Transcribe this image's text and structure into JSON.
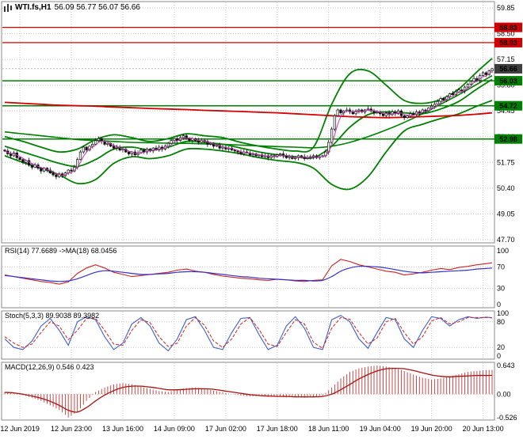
{
  "window": {
    "title_symbol": "WTI.fs,H1",
    "title_ohlc": "56.09 56.77 56.07 56.66"
  },
  "colors": {
    "resistance": "#d40000",
    "support": "#008000",
    "current_tag": "#3d3d3d",
    "candle_outline": "#111111",
    "rsi_main": "#cc2222",
    "rsi_ma": "#3333cc",
    "stoch_main": "#3a5fc8",
    "stoch_signal": "#cc2222",
    "macd_color": "#cc3333",
    "ma_red": "#d40000",
    "ma_green": "#008000",
    "ma_fast": "#c03ab0",
    "grid": "#c6c6c6",
    "frame": "#8a8a8a"
  },
  "chart_data": {
    "type": "candlestick",
    "symbol": "WTI.fs",
    "timeframe": "H1",
    "current_bar": {
      "open": 56.09,
      "high": 56.77,
      "low": 56.07,
      "close": 56.66
    },
    "price_axis": {
      "ticks": [
        59.85,
        58.5,
        57.15,
        55.8,
        54.45,
        53.1,
        51.75,
        50.4,
        49.05,
        47.7
      ]
    },
    "x_axis": {
      "labels": [
        "12 Jun 2019",
        "12 Jun 23:00",
        "13 Jun 16:00",
        "14 Jun 09:00",
        "17 Jun 02:00",
        "17 Jun 18:00",
        "18 Jun 11:00",
        "19 Jun 04:00",
        "19 Jun 20:00",
        "20 Jun 13:00"
      ],
      "bar_index": [
        5,
        22,
        39,
        56,
        73,
        90,
        107,
        124,
        141,
        158
      ]
    },
    "levels": {
      "resistance": [
        58.83,
        58.03
      ],
      "support": [
        56.03,
        54.72,
        52.98
      ],
      "current_price": 56.66
    },
    "candles": {
      "first_open": 52.4,
      "closes": [
        52.35,
        52.2,
        52.1,
        52.25,
        52.0,
        51.9,
        51.75,
        51.85,
        51.6,
        51.5,
        51.62,
        51.45,
        51.3,
        51.45,
        51.35,
        51.2,
        51.1,
        51.0,
        51.15,
        51.05,
        51.2,
        51.35,
        51.3,
        51.5,
        51.9,
        52.3,
        52.55,
        52.4,
        52.6,
        52.7,
        52.9,
        53.0,
        52.85,
        52.7,
        52.75,
        52.6,
        52.5,
        52.55,
        52.4,
        52.45,
        52.3,
        52.2,
        52.3,
        52.15,
        52.25,
        52.4,
        52.3,
        52.45,
        52.35,
        52.5,
        52.4,
        52.55,
        52.45,
        52.6,
        52.75,
        52.9,
        53.0,
        52.9,
        53.05,
        53.15,
        53.0,
        52.9,
        53.0,
        52.9,
        52.8,
        52.9,
        52.85,
        52.7,
        52.75,
        52.6,
        52.65,
        52.5,
        52.55,
        52.45,
        52.5,
        52.4,
        52.35,
        52.3,
        52.2,
        52.3,
        52.25,
        52.15,
        52.2,
        52.1,
        52.15,
        52.05,
        52.1,
        52.0,
        52.1,
        52.05,
        52.15,
        52.2,
        52.1,
        52.0,
        52.05,
        51.95,
        52.0,
        52.1,
        52.05,
        51.95,
        52.0,
        52.05,
        52.1,
        52.0,
        52.05,
        52.1,
        52.3,
        52.8,
        53.5,
        54.2,
        54.5,
        54.35,
        54.45,
        54.5,
        54.4,
        54.3,
        54.45,
        54.5,
        54.4,
        54.5,
        54.55,
        54.45,
        54.35,
        54.4,
        54.3,
        54.2,
        54.35,
        54.25,
        54.4,
        54.3,
        54.45,
        54.2,
        54.1,
        54.2,
        54.3,
        54.25,
        54.4,
        54.35,
        54.5,
        54.45,
        54.6,
        54.7,
        54.8,
        54.95,
        55.1,
        55.0,
        55.2,
        55.35,
        55.3,
        55.45,
        55.55,
        55.5,
        55.7,
        55.85,
        56.0,
        56.15,
        56.05,
        56.3,
        56.45,
        56.35,
        56.55,
        56.66
      ]
    },
    "overlays": {
      "step": 6,
      "boll_upper": [
        53.1,
        52.85,
        52.55,
        52.3,
        52.45,
        52.95,
        53.2,
        53.05,
        52.85,
        53.0,
        53.25,
        53.15,
        53.05,
        52.8,
        52.6,
        52.45,
        52.35,
        52.55,
        54.8,
        56.4,
        56.55,
        55.8,
        55.0,
        54.85,
        55.05,
        55.6,
        56.5,
        57.2
      ],
      "boll_middle": [
        52.6,
        52.3,
        52.0,
        51.7,
        51.55,
        51.9,
        52.45,
        52.55,
        52.4,
        52.55,
        52.85,
        52.8,
        52.7,
        52.5,
        52.3,
        52.15,
        52.05,
        52.0,
        52.6,
        53.6,
        54.25,
        54.4,
        54.35,
        54.3,
        54.55,
        54.95,
        55.6,
        56.1
      ],
      "boll_lower": [
        52.1,
        51.75,
        51.45,
        51.1,
        50.65,
        50.85,
        51.7,
        52.05,
        51.95,
        52.1,
        52.45,
        52.45,
        52.35,
        52.2,
        52.0,
        51.85,
        51.75,
        51.45,
        50.6,
        50.35,
        51.0,
        52.3,
        53.4,
        53.75,
        54.05,
        54.3,
        54.7,
        55.0
      ],
      "ma_red": [
        54.9,
        54.85,
        54.8,
        54.75,
        54.72,
        54.7,
        54.65,
        54.62,
        54.58,
        54.55,
        54.52,
        54.48,
        54.45,
        54.42,
        54.38,
        54.35,
        54.3,
        54.25,
        54.2,
        54.15,
        54.12,
        54.1,
        54.12,
        54.15,
        54.18,
        54.22,
        54.28,
        54.35
      ],
      "ma_green_slow": [
        53.35,
        53.25,
        53.15,
        53.05,
        52.95,
        52.9,
        52.85,
        52.8,
        52.78,
        52.76,
        52.75,
        52.72,
        52.7,
        52.66,
        52.62,
        52.58,
        52.55,
        52.52,
        52.6,
        52.8,
        53.1,
        53.45,
        53.85,
        54.3,
        54.8,
        55.3,
        55.85,
        56.3
      ]
    },
    "rsi": {
      "label": "RSI(14) 77.6689 ->MA(18) 68.0456",
      "ticks": [
        100,
        70,
        30,
        0
      ],
      "levels": [
        70,
        30
      ],
      "step": 3,
      "main": [
        55,
        52,
        49,
        46,
        43,
        41,
        38,
        42,
        58,
        68,
        74,
        68,
        60,
        56,
        52,
        54,
        56,
        58,
        60,
        64,
        66,
        62,
        60,
        56,
        53,
        51,
        49,
        48,
        46,
        45,
        47,
        46,
        44,
        43,
        45,
        46,
        72,
        84,
        80,
        74,
        70,
        66,
        62,
        60,
        55,
        57,
        60,
        64,
        67,
        65,
        69,
        71,
        74,
        76,
        77.7
      ],
      "ma": [
        54,
        52,
        50,
        48,
        46,
        44,
        43,
        44,
        48,
        54,
        60,
        63,
        62,
        60,
        58,
        56,
        56,
        57,
        58,
        60,
        61,
        61,
        60,
        58,
        56,
        54,
        52,
        51,
        49,
        48,
        47,
        46,
        45,
        45,
        44,
        45,
        52,
        62,
        68,
        71,
        71,
        70,
        68,
        65,
        62,
        60,
        59,
        60,
        61,
        62,
        63,
        64,
        66,
        67,
        68.0
      ]
    },
    "stoch": {
      "label": "Stoch(5,3,3) 89.9038 89.3982",
      "ticks": [
        100,
        80,
        20,
        0
      ],
      "levels": [
        80,
        20
      ],
      "step": 3,
      "main": [
        40,
        20,
        15,
        35,
        70,
        88,
        60,
        25,
        80,
        92,
        85,
        45,
        15,
        30,
        75,
        90,
        70,
        30,
        12,
        40,
        85,
        92,
        60,
        20,
        15,
        55,
        88,
        90,
        50,
        15,
        25,
        70,
        92,
        65,
        20,
        15,
        85,
        95,
        80,
        40,
        18,
        55,
        90,
        85,
        40,
        20,
        60,
        92,
        88,
        70,
        85,
        92,
        88,
        91,
        89.9
      ],
      "signal": [
        45,
        30,
        20,
        28,
        55,
        80,
        70,
        38,
        60,
        88,
        88,
        60,
        28,
        25,
        60,
        85,
        78,
        45,
        22,
        30,
        70,
        90,
        72,
        35,
        20,
        40,
        75,
        90,
        62,
        28,
        22,
        55,
        85,
        75,
        32,
        18,
        65,
        90,
        86,
        55,
        28,
        42,
        80,
        88,
        55,
        28,
        45,
        82,
        90,
        75,
        80,
        90,
        90,
        90,
        89.4
      ]
    },
    "macd": {
      "label": "MACD(12,26,9) 0.546 0.423",
      "ticks": [
        "0.643",
        "0.00",
        "-0.526"
      ],
      "step": 3,
      "macd": [
        0.05,
        0.02,
        -0.02,
        -0.08,
        -0.15,
        -0.25,
        -0.35,
        -0.52,
        -0.4,
        -0.15,
        0.05,
        0.15,
        0.22,
        0.25,
        0.22,
        0.17,
        0.12,
        0.07,
        0.05,
        0.1,
        0.14,
        0.15,
        0.12,
        0.08,
        0.04,
        0.0,
        -0.03,
        -0.05,
        -0.04,
        -0.06,
        -0.05,
        -0.07,
        -0.06,
        -0.08,
        -0.06,
        -0.03,
        0.15,
        0.35,
        0.5,
        0.58,
        0.62,
        0.64,
        0.62,
        0.58,
        0.52,
        0.44,
        0.37,
        0.33,
        0.35,
        0.4,
        0.45,
        0.5,
        0.52,
        0.54,
        0.546
      ],
      "signal": [
        0.04,
        0.03,
        0.0,
        -0.04,
        -0.09,
        -0.16,
        -0.25,
        -0.36,
        -0.4,
        -0.3,
        -0.15,
        -0.02,
        0.08,
        0.15,
        0.18,
        0.18,
        0.16,
        0.13,
        0.1,
        0.1,
        0.11,
        0.12,
        0.12,
        0.11,
        0.08,
        0.05,
        0.02,
        -0.01,
        -0.03,
        -0.04,
        -0.05,
        -0.05,
        -0.06,
        -0.06,
        -0.06,
        -0.05,
        0.0,
        0.1,
        0.22,
        0.34,
        0.44,
        0.52,
        0.57,
        0.58,
        0.57,
        0.53,
        0.48,
        0.43,
        0.4,
        0.39,
        0.4,
        0.41,
        0.42,
        0.42,
        0.423
      ]
    }
  }
}
